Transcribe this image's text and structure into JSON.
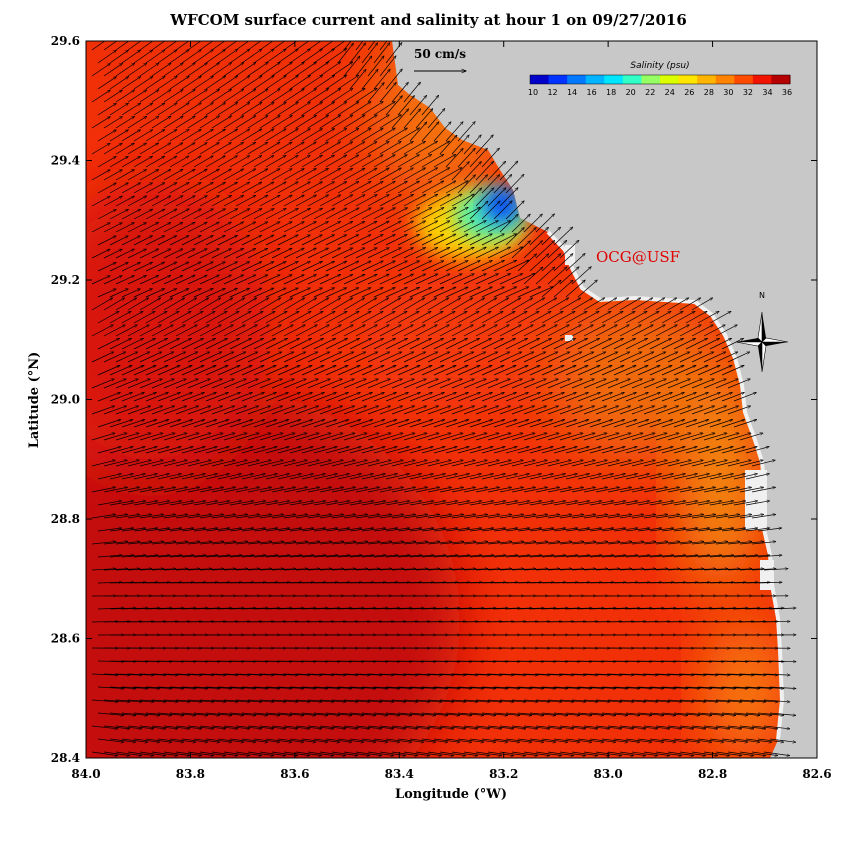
{
  "title": "WFCOM surface current and salinity at hour 1 on 09/27/2016",
  "x_axis": {
    "label": "Longitude (°W)",
    "range": [
      84.0,
      82.6
    ],
    "ticks": [
      "84.0",
      "83.8",
      "83.6",
      "83.4",
      "83.2",
      "83.0",
      "82.8",
      "82.6"
    ]
  },
  "y_axis": {
    "label": "Latitude (°N)",
    "range": [
      28.4,
      29.6
    ],
    "ticks": [
      "28.4",
      "28.6",
      "28.8",
      "29.0",
      "29.2",
      "29.4",
      "29.6"
    ]
  },
  "colorbar": {
    "title": "Salinity (psu)",
    "ticks": [
      "10",
      "12",
      "14",
      "16",
      "18",
      "20",
      "22",
      "24",
      "26",
      "28",
      "30",
      "32",
      "34",
      "36"
    ],
    "colors": [
      "#0000c8",
      "#0032ff",
      "#0078ff",
      "#00b4ff",
      "#00e6ff",
      "#32ffc8",
      "#96ff64",
      "#dcff00",
      "#ffe600",
      "#ffb400",
      "#ff8200",
      "#ff4b00",
      "#f01400",
      "#b40000"
    ]
  },
  "scale_arrow": {
    "label": "50 cm/s"
  },
  "credit": "OCG@USF",
  "compass": {
    "label": "N"
  },
  "colors": {
    "land": "#c8c8c8",
    "coast_fringe": "#f0f0f0",
    "arrow": "#000000"
  }
}
